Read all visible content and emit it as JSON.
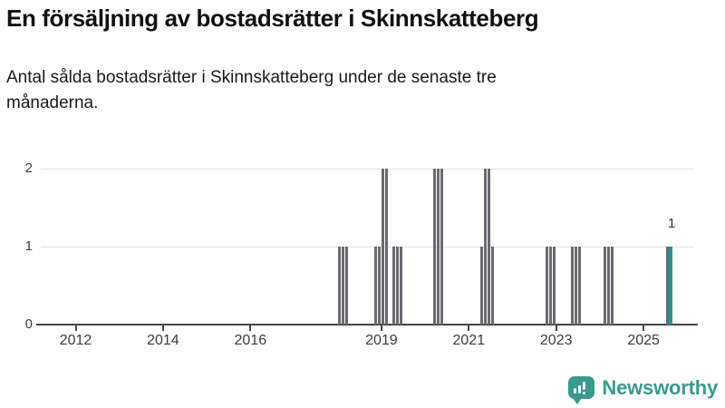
{
  "header": {
    "title": "En försäljning av bostadsrätter i Skinnskatteberg",
    "subtitle": "Antal sålda bostadsrätter i Skinnskatteberg under de senaste tre månaderna."
  },
  "footer": {
    "brand": "Newsworthy",
    "logo_icon": "bar-chart-exclamation-bubble"
  },
  "colors": {
    "bar": "#6a6a70",
    "accent": "#149b9b",
    "axis": "#45454c",
    "grid": "#e4e4e6",
    "title_text": "#111111",
    "tick_text": "#3d3d3d",
    "annotation_text": "#333333",
    "brand": "#3a9a8d"
  },
  "chart_data": {
    "type": "bar",
    "title": "En försäljning av bostadsrätter i Skinnskatteberg",
    "subtitle": "Antal sålda bostadsrätter i Skinnskatteberg under de senaste tre månaderna.",
    "xlabel": "",
    "ylabel": "",
    "x_unit": "month",
    "xlim": [
      2011.1,
      2026.2
    ],
    "ylim": [
      0,
      2
    ],
    "yticks": [
      0,
      1,
      2
    ],
    "xticks": [
      2012,
      2014,
      2016,
      2019,
      2021,
      2023,
      2025
    ],
    "grid": "horizontal",
    "legend": "none",
    "highlight_meaning": "latest 3-month value, shown in accent teal",
    "annotation": {
      "text": "1",
      "month": "2025-08"
    },
    "bars": [
      {
        "month": "2018-01",
        "value": 1
      },
      {
        "month": "2018-02",
        "value": 1
      },
      {
        "month": "2018-03",
        "value": 1
      },
      {
        "month": "2018-11",
        "value": 1
      },
      {
        "month": "2018-12",
        "value": 1
      },
      {
        "month": "2019-01",
        "value": 2
      },
      {
        "month": "2019-02",
        "value": 2
      },
      {
        "month": "2019-04",
        "value": 1
      },
      {
        "month": "2019-05",
        "value": 1
      },
      {
        "month": "2019-06",
        "value": 1
      },
      {
        "month": "2020-03",
        "value": 2
      },
      {
        "month": "2020-04",
        "value": 2
      },
      {
        "month": "2020-05",
        "value": 2
      },
      {
        "month": "2021-04",
        "value": 1
      },
      {
        "month": "2021-05",
        "value": 2
      },
      {
        "month": "2021-06",
        "value": 2
      },
      {
        "month": "2021-07",
        "value": 1
      },
      {
        "month": "2022-10",
        "value": 1
      },
      {
        "month": "2022-11",
        "value": 1
      },
      {
        "month": "2022-12",
        "value": 1
      },
      {
        "month": "2023-05",
        "value": 1
      },
      {
        "month": "2023-06",
        "value": 1
      },
      {
        "month": "2023-07",
        "value": 1
      },
      {
        "month": "2024-02",
        "value": 1
      },
      {
        "month": "2024-03",
        "value": 1
      },
      {
        "month": "2024-04",
        "value": 1
      },
      {
        "month": "2025-07",
        "value": 1
      },
      {
        "month": "2025-08",
        "value": 1,
        "highlight": true
      }
    ]
  }
}
